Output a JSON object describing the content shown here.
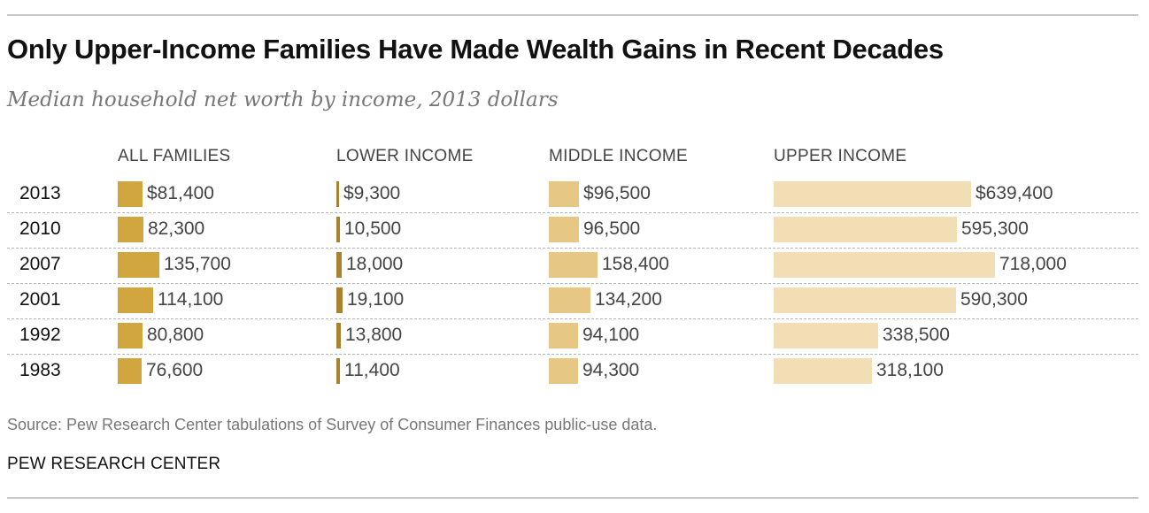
{
  "title": "Only Upper-Income Families Have Made Wealth Gains in Recent Decades",
  "subtitle": "Median household net worth by income, 2013 dollars",
  "source": "Source: Pew Research Center tabulations of Survey of Consumer Finances public-use data.",
  "brand": "PEW RESEARCH CENTER",
  "colors": {
    "all_families": "#d1a63f",
    "lower_income": "#a8822e",
    "middle_income": "#e6c784",
    "upper_income": "#f1deb5"
  },
  "chart_data": {
    "type": "bar",
    "title": "Only Upper-Income Families Have Made Wealth Gains in Recent Decades",
    "subtitle": "Median household net worth by income, 2013 dollars",
    "categories": [
      "2013",
      "2010",
      "2007",
      "2001",
      "1992",
      "1983"
    ],
    "series": [
      {
        "name": "ALL FAMILIES",
        "values": [
          81400,
          82300,
          135700,
          114100,
          80800,
          76600
        ],
        "labels": [
          "$81,400",
          "82,300",
          "135,700",
          "114,100",
          "80,800",
          "76,600"
        ]
      },
      {
        "name": "LOWER INCOME",
        "values": [
          9300,
          10500,
          18000,
          19100,
          13800,
          11400
        ],
        "labels": [
          "$9,300",
          "10,500",
          "18,000",
          "19,100",
          "13,800",
          "11,400"
        ]
      },
      {
        "name": "MIDDLE INCOME",
        "values": [
          96500,
          96500,
          158400,
          134200,
          94100,
          94300
        ],
        "labels": [
          "$96,500",
          "96,500",
          "158,400",
          "134,200",
          "94,100",
          "94,300"
        ]
      },
      {
        "name": "UPPER INCOME",
        "values": [
          639400,
          595300,
          718000,
          590300,
          338500,
          318100
        ],
        "labels": [
          "$639,400",
          "595,300",
          "718,000",
          "590,300",
          "338,500",
          "318,100"
        ]
      }
    ],
    "xlim": [
      0,
      718000
    ],
    "grid": false,
    "legend": "none"
  }
}
